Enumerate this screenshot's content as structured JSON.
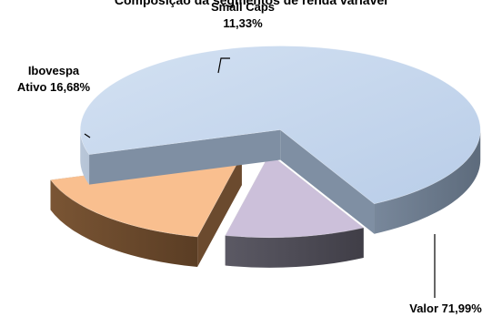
{
  "chart_data": {
    "type": "pie",
    "title": "Composição da segmentos de renda variável",
    "slices": [
      {
        "key": "valor",
        "label_lines": [
          "Valor 71,99%"
        ],
        "name": "Valor",
        "value": 71.99,
        "top_color": "#c6d9f0",
        "side_color": "#7f8fa3"
      },
      {
        "key": "ibovespa",
        "label_lines": [
          "Ibovespa",
          "Ativo 16,68%"
        ],
        "name": "Ibovespa Ativo",
        "value": 16.68,
        "top_color": "#f9bf8f",
        "side_color": "#6b4a2e"
      },
      {
        "key": "smallcaps",
        "label_lines": [
          "Small Caps",
          "11,33%"
        ],
        "name": "Small Caps",
        "value": 11.33,
        "top_color": "#ccc0da",
        "side_color": "#4f4d57"
      }
    ],
    "style": "3d-exploded",
    "legend": "none"
  }
}
